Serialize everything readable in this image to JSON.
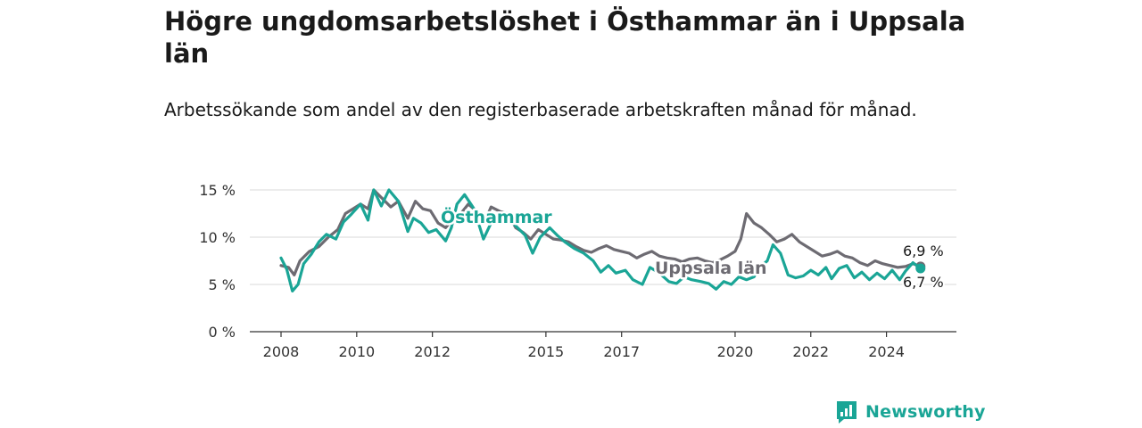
{
  "chart_data": {
    "type": "line",
    "title": "Högre ungdomsarbetslöshet i Östhammar än i Uppsala län",
    "subtitle": "Arbetssökande som andel av den registerbaserade arbetskraften månad för månad.",
    "y_ticks": [
      "15 %",
      "10 %",
      "5 %",
      "0 %"
    ],
    "y_tick_values": [
      15,
      10,
      5,
      0
    ],
    "x_ticks": [
      "2008",
      "2010",
      "2012",
      "2015",
      "2017",
      "2020",
      "2022",
      "2024"
    ],
    "x_tick_values": [
      2008,
      2010,
      2012,
      2015,
      2017,
      2020,
      2022,
      2024
    ],
    "xlim": [
      2008,
      2025
    ],
    "ylim": [
      0,
      15
    ],
    "grid": true,
    "series": [
      {
        "name": "Östhammar",
        "color": "#1aa596",
        "label": "Östhammar",
        "end_label": "6,7 %",
        "points": [
          [
            2008.0,
            7.8
          ],
          [
            2008.15,
            6.6
          ],
          [
            2008.3,
            4.3
          ],
          [
            2008.45,
            5.0
          ],
          [
            2008.6,
            7.2
          ],
          [
            2008.8,
            8.2
          ],
          [
            2009.0,
            9.5
          ],
          [
            2009.2,
            10.3
          ],
          [
            2009.45,
            9.8
          ],
          [
            2009.65,
            11.6
          ],
          [
            2009.85,
            12.4
          ],
          [
            2010.1,
            13.5
          ],
          [
            2010.3,
            11.8
          ],
          [
            2010.45,
            15.0
          ],
          [
            2010.65,
            13.3
          ],
          [
            2010.85,
            15.0
          ],
          [
            2011.1,
            13.8
          ],
          [
            2011.35,
            10.6
          ],
          [
            2011.5,
            12.0
          ],
          [
            2011.7,
            11.5
          ],
          [
            2011.9,
            10.5
          ],
          [
            2012.1,
            10.8
          ],
          [
            2012.35,
            9.6
          ],
          [
            2012.5,
            11.0
          ],
          [
            2012.65,
            13.5
          ],
          [
            2012.85,
            14.5
          ],
          [
            2013.1,
            13.0
          ],
          [
            2013.35,
            9.8
          ],
          [
            2013.55,
            11.5
          ],
          [
            2013.75,
            12.5
          ],
          [
            2014.0,
            12.0
          ],
          [
            2014.25,
            11.0
          ],
          [
            2014.45,
            10.2
          ],
          [
            2014.65,
            8.3
          ],
          [
            2014.85,
            10.0
          ],
          [
            2015.1,
            11.0
          ],
          [
            2015.3,
            10.2
          ],
          [
            2015.5,
            9.5
          ],
          [
            2015.75,
            8.8
          ],
          [
            2016.0,
            8.3
          ],
          [
            2016.25,
            7.5
          ],
          [
            2016.45,
            6.3
          ],
          [
            2016.65,
            7.0
          ],
          [
            2016.85,
            6.2
          ],
          [
            2017.1,
            6.5
          ],
          [
            2017.3,
            5.5
          ],
          [
            2017.55,
            5.0
          ],
          [
            2017.75,
            6.8
          ],
          [
            2018.0,
            6.2
          ],
          [
            2018.25,
            5.3
          ],
          [
            2018.45,
            5.1
          ],
          [
            2018.65,
            5.8
          ],
          [
            2018.85,
            5.5
          ],
          [
            2019.1,
            5.3
          ],
          [
            2019.3,
            5.1
          ],
          [
            2019.5,
            4.5
          ],
          [
            2019.7,
            5.3
          ],
          [
            2019.9,
            5.0
          ],
          [
            2020.1,
            5.8
          ],
          [
            2020.3,
            5.5
          ],
          [
            2020.5,
            5.8
          ],
          [
            2020.65,
            6.8
          ],
          [
            2020.85,
            7.5
          ],
          [
            2021.0,
            9.2
          ],
          [
            2021.2,
            8.3
          ],
          [
            2021.4,
            6.0
          ],
          [
            2021.6,
            5.7
          ],
          [
            2021.8,
            5.9
          ],
          [
            2022.0,
            6.5
          ],
          [
            2022.2,
            6.0
          ],
          [
            2022.4,
            6.8
          ],
          [
            2022.55,
            5.6
          ],
          [
            2022.75,
            6.7
          ],
          [
            2022.95,
            7.0
          ],
          [
            2023.15,
            5.7
          ],
          [
            2023.35,
            6.3
          ],
          [
            2023.55,
            5.5
          ],
          [
            2023.75,
            6.2
          ],
          [
            2023.95,
            5.6
          ],
          [
            2024.15,
            6.5
          ],
          [
            2024.35,
            5.5
          ],
          [
            2024.5,
            6.4
          ],
          [
            2024.7,
            7.3
          ],
          [
            2024.9,
            6.7
          ]
        ]
      },
      {
        "name": "Uppsala län",
        "color": "#6d6b72",
        "label": "Uppsala län",
        "end_label": "6,9 %",
        "points": [
          [
            2008.0,
            7.0
          ],
          [
            2008.2,
            6.8
          ],
          [
            2008.35,
            6.0
          ],
          [
            2008.5,
            7.5
          ],
          [
            2008.75,
            8.5
          ],
          [
            2009.0,
            9.0
          ],
          [
            2009.25,
            10.0
          ],
          [
            2009.5,
            10.8
          ],
          [
            2009.7,
            12.5
          ],
          [
            2009.9,
            13.0
          ],
          [
            2010.1,
            13.5
          ],
          [
            2010.3,
            13.0
          ],
          [
            2010.45,
            15.0
          ],
          [
            2010.7,
            14.0
          ],
          [
            2010.9,
            13.2
          ],
          [
            2011.1,
            13.8
          ],
          [
            2011.35,
            12.0
          ],
          [
            2011.55,
            13.8
          ],
          [
            2011.75,
            13.0
          ],
          [
            2011.95,
            12.8
          ],
          [
            2012.15,
            11.5
          ],
          [
            2012.35,
            11.0
          ],
          [
            2012.55,
            12.0
          ],
          [
            2012.75,
            12.5
          ],
          [
            2012.95,
            13.5
          ],
          [
            2013.15,
            12.8
          ],
          [
            2013.4,
            11.8
          ],
          [
            2013.55,
            13.2
          ],
          [
            2013.8,
            12.7
          ],
          [
            2014.0,
            12.5
          ],
          [
            2014.2,
            11.0
          ],
          [
            2014.4,
            10.5
          ],
          [
            2014.6,
            9.8
          ],
          [
            2014.8,
            10.8
          ],
          [
            2015.0,
            10.3
          ],
          [
            2015.2,
            9.8
          ],
          [
            2015.4,
            9.7
          ],
          [
            2015.6,
            9.5
          ],
          [
            2015.8,
            9.0
          ],
          [
            2016.0,
            8.6
          ],
          [
            2016.2,
            8.4
          ],
          [
            2016.4,
            8.8
          ],
          [
            2016.6,
            9.1
          ],
          [
            2016.8,
            8.7
          ],
          [
            2017.0,
            8.5
          ],
          [
            2017.2,
            8.3
          ],
          [
            2017.4,
            7.8
          ],
          [
            2017.6,
            8.2
          ],
          [
            2017.8,
            8.5
          ],
          [
            2018.0,
            8.0
          ],
          [
            2018.2,
            7.8
          ],
          [
            2018.4,
            7.7
          ],
          [
            2018.6,
            7.4
          ],
          [
            2018.8,
            7.7
          ],
          [
            2019.0,
            7.8
          ],
          [
            2019.2,
            7.5
          ],
          [
            2019.4,
            7.3
          ],
          [
            2019.6,
            7.6
          ],
          [
            2019.8,
            8.0
          ],
          [
            2020.0,
            8.5
          ],
          [
            2020.15,
            9.8
          ],
          [
            2020.3,
            12.5
          ],
          [
            2020.5,
            11.5
          ],
          [
            2020.7,
            11.0
          ],
          [
            2020.9,
            10.3
          ],
          [
            2021.1,
            9.5
          ],
          [
            2021.3,
            9.8
          ],
          [
            2021.5,
            10.3
          ],
          [
            2021.7,
            9.5
          ],
          [
            2021.9,
            9.0
          ],
          [
            2022.1,
            8.5
          ],
          [
            2022.3,
            8.0
          ],
          [
            2022.5,
            8.2
          ],
          [
            2022.7,
            8.5
          ],
          [
            2022.9,
            8.0
          ],
          [
            2023.1,
            7.8
          ],
          [
            2023.3,
            7.3
          ],
          [
            2023.5,
            7.0
          ],
          [
            2023.7,
            7.5
          ],
          [
            2023.9,
            7.2
          ],
          [
            2024.1,
            7.0
          ],
          [
            2024.3,
            6.8
          ],
          [
            2024.5,
            6.9
          ],
          [
            2024.7,
            7.2
          ],
          [
            2024.9,
            6.9
          ]
        ]
      }
    ]
  },
  "brand": {
    "name": "Newsworthy",
    "icon": "newsworthy-logo-icon",
    "color": "#1aa596"
  }
}
